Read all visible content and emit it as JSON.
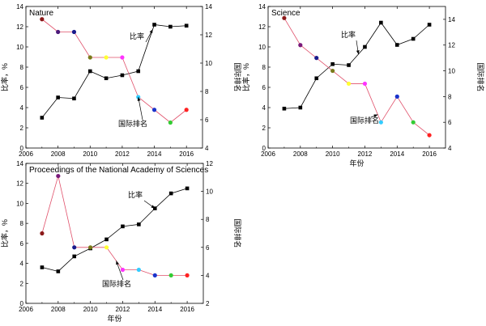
{
  "figure": {
    "axis_titles": {
      "left": "比率，%",
      "right": "国际排名",
      "bottom": "年份"
    }
  },
  "chart_data": [
    {
      "type": "line",
      "title": "Nature",
      "xlabel": "",
      "ylabel": "比率，%",
      "y2label": "国际排名",
      "xlim": [
        2006,
        2017
      ],
      "xticks": [
        2006,
        2008,
        2010,
        2012,
        2014,
        2016
      ],
      "ylim": [
        0,
        14
      ],
      "yticks": [
        0,
        2,
        4,
        6,
        8,
        10,
        12,
        14
      ],
      "y2lim": [
        4,
        14
      ],
      "y2ticks": [
        4,
        6,
        8,
        10,
        12,
        14
      ],
      "grid": false,
      "legend": "none",
      "series": [
        {
          "name": "比率",
          "axis": "left",
          "color": "#000000",
          "marker": "square",
          "x": [
            2007,
            2008,
            2009,
            2010,
            2011,
            2012,
            2013,
            2014,
            2015,
            2016
          ],
          "values": [
            3.0,
            5.0,
            4.9,
            7.6,
            6.9,
            7.2,
            7.6,
            12.2,
            12.0,
            12.1
          ]
        },
        {
          "name": "国际排名",
          "axis": "right",
          "line_color": "#e0506a",
          "marker": "circle",
          "x": [
            2007,
            2008,
            2009,
            2010,
            2011,
            2012,
            2013,
            2014,
            2015,
            2016
          ],
          "values": [
            13.1,
            12.2,
            12.2,
            10.4,
            10.4,
            10.4,
            7.6,
            6.7,
            5.8,
            6.7
          ],
          "point_colors": [
            "#8b1a1a",
            "#4b1a7a",
            "#1a1a8b",
            "#7a7a1a",
            "#ffff33",
            "#ff33ff",
            "#33ccff",
            "#1a33cc",
            "#33cc33",
            "#ff2222"
          ]
        }
      ],
      "annotations": [
        {
          "text": "比率",
          "target_series": 0,
          "target_x": 2013.9
        },
        {
          "text": "国际排名",
          "target_series": 1,
          "target_x": 2013.0
        }
      ]
    },
    {
      "type": "line",
      "title": "Science",
      "xlabel": "年份",
      "ylabel": "比率，%",
      "y2label": "国际排名",
      "xlim": [
        2006,
        2017
      ],
      "xticks": [
        2006,
        2008,
        2010,
        2012,
        2014,
        2016
      ],
      "ylim": [
        0,
        14
      ],
      "yticks": [
        0,
        2,
        4,
        6,
        8,
        10,
        12,
        14
      ],
      "y2lim": [
        4,
        15
      ],
      "y2ticks": [
        4,
        6,
        8,
        10,
        12,
        14
      ],
      "grid": false,
      "legend": "none",
      "series": [
        {
          "name": "比率",
          "axis": "left",
          "color": "#000000",
          "marker": "square",
          "x": [
            2007,
            2008,
            2009,
            2010,
            2011,
            2012,
            2013,
            2014,
            2015,
            2016
          ],
          "values": [
            3.9,
            4.0,
            6.9,
            8.3,
            8.2,
            10.0,
            12.4,
            10.2,
            10.8,
            12.2
          ],
          "point_colors": [
            "#000000",
            "#000000",
            "#000000",
            "#000000",
            "#000000",
            "#000000",
            "#000000",
            "#000000",
            "#000000",
            "#000000"
          ]
        },
        {
          "name": "国际排名",
          "axis": "right",
          "line_color": "#e0506a",
          "marker": "circle",
          "x": [
            2007,
            2008,
            2009,
            2010,
            2011,
            2012,
            2013,
            2014,
            2015,
            2016
          ],
          "values": [
            14.1,
            12.0,
            11.0,
            10.0,
            9.0,
            9.0,
            6.0,
            8.0,
            6.0,
            5.0
          ],
          "point_colors": [
            "#8b1a1a",
            "#7a1a7a",
            "#1a1a8b",
            "#7a7a1a",
            "#ffff33",
            "#ff33ff",
            "#33ccff",
            "#1a33cc",
            "#33cc33",
            "#ff2222"
          ]
        }
      ],
      "annotations": [
        {
          "text": "比率",
          "target_series": 0,
          "target_x": 2011.6
        },
        {
          "text": "国际排名",
          "target_series": 1,
          "target_x": 2012.8
        }
      ]
    },
    {
      "type": "line",
      "title": "Proceedings of the National Academy of Sciences",
      "xlabel": "年份",
      "ylabel": "比率，%",
      "y2label": "国际排名",
      "xlim": [
        2006,
        2017
      ],
      "xticks": [
        2006,
        2008,
        2010,
        2012,
        2014,
        2016
      ],
      "ylim": [
        0,
        14
      ],
      "yticks": [
        0,
        2,
        4,
        6,
        8,
        10,
        12,
        14
      ],
      "y2lim": [
        2,
        12
      ],
      "y2ticks": [
        2,
        4,
        6,
        8,
        10,
        12
      ],
      "grid": false,
      "legend": "none",
      "series": [
        {
          "name": "比率",
          "axis": "left",
          "color": "#000000",
          "marker": "square",
          "x": [
            2007,
            2008,
            2009,
            2010,
            2011,
            2012,
            2013,
            2014,
            2015,
            2016
          ],
          "values": [
            3.6,
            3.2,
            4.7,
            5.5,
            6.4,
            7.7,
            7.9,
            9.5,
            11.0,
            11.5
          ]
        },
        {
          "name": "国际排名",
          "axis": "right",
          "line_color": "#e0506a",
          "marker": "circle",
          "x": [
            2007,
            2008,
            2009,
            2010,
            2011,
            2012,
            2013,
            2014,
            2015,
            2016
          ],
          "values": [
            7.0,
            11.1,
            6.0,
            6.0,
            6.0,
            4.4,
            4.4,
            4.0,
            4.0,
            4.0
          ],
          "point_colors": [
            "#8b1a1a",
            "#7a1a7a",
            "#1a1a8b",
            "#7a7a1a",
            "#ffff33",
            "#ff33ff",
            "#33ccff",
            "#1a33cc",
            "#33cc33",
            "#ff2222"
          ]
        }
      ],
      "annotations": [
        {
          "text": "比率",
          "target_series": 0,
          "target_x": 2014.0
        },
        {
          "text": "国际排名",
          "target_series": 1,
          "target_x": 2011.6
        }
      ]
    }
  ]
}
